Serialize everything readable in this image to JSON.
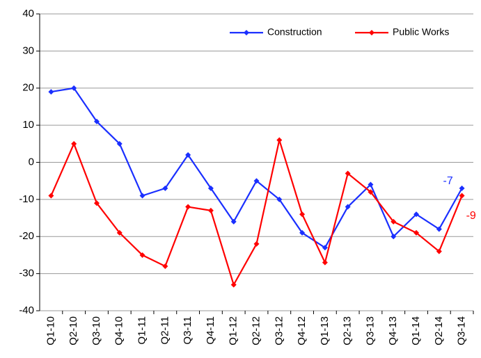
{
  "chart_data": {
    "type": "line",
    "categories": [
      "Q1-10",
      "Q2-10",
      "Q3-10",
      "Q4-10",
      "Q1-11",
      "Q2-11",
      "Q3-11",
      "Q4-11",
      "Q1-12",
      "Q2-12",
      "Q3-12",
      "Q4-12",
      "Q1-13",
      "Q2-13",
      "Q3-13",
      "Q4-13",
      "Q1-14",
      "Q2-14",
      "Q3-14"
    ],
    "series": [
      {
        "name": "Construction",
        "color": "#1a2fff",
        "values": [
          19,
          20,
          11,
          5,
          -9,
          -7,
          2,
          -7,
          -16,
          -5,
          -10,
          -19,
          -23,
          -12,
          -6,
          -20,
          -14,
          -18,
          -7
        ]
      },
      {
        "name": "Public Works",
        "color": "#ff0000",
        "values": [
          -9,
          5,
          -11,
          -19,
          -25,
          -28,
          -12,
          -13,
          -33,
          -22,
          6,
          -14,
          -27,
          -3,
          -8,
          -16,
          -19,
          -24,
          -9
        ]
      }
    ],
    "ylim": [
      -40,
      40
    ],
    "yticks": [
      -40,
      -30,
      -20,
      -10,
      0,
      10,
      20,
      30,
      40
    ],
    "grid": true,
    "legend": "top-right"
  }
}
